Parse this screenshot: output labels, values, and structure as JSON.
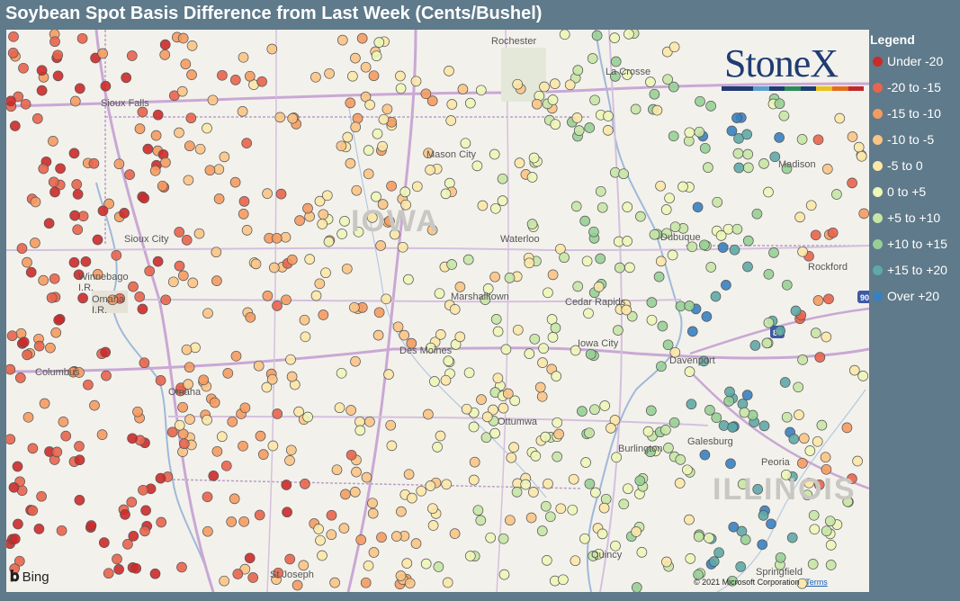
{
  "title": "Soybean Spot Basis Difference from Last Week (Cents/Bushel)",
  "legend": {
    "title": "Legend",
    "items": [
      {
        "label": "Under -20",
        "color": "#cc2a2a"
      },
      {
        "label": "-20 to -15",
        "color": "#e9644d"
      },
      {
        "label": "-15 to -10",
        "color": "#f59b62"
      },
      {
        "label": "-10 to -5",
        "color": "#f9c486"
      },
      {
        "label": "-5 to 0",
        "color": "#fbe7a8"
      },
      {
        "label": "0 to +5",
        "color": "#eef6b8"
      },
      {
        "label": "+5 to +10",
        "color": "#c8e6a6"
      },
      {
        "label": "+10 to +15",
        "color": "#98cf96"
      },
      {
        "label": "+15 to +20",
        "color": "#5fa9a6"
      },
      {
        "label": "Over +20",
        "color": "#3a7fc0"
      }
    ]
  },
  "logo": {
    "text": "StoneX",
    "bar_colors": [
      "#1f3c73",
      "#1f3c73",
      "#5aa0d0",
      "#1f3c73",
      "#2e8b57",
      "#1f3c73",
      "#e8c31c",
      "#e36d1f",
      "#c0282d"
    ]
  },
  "map": {
    "states": [
      "IOWA",
      "ILLINOIS"
    ],
    "cities": [
      "Rochester",
      "La Crosse",
      "Sioux Falls",
      "Mason City",
      "Madison",
      "Sioux City",
      "Waterloo",
      "Dubuque",
      "Rockford",
      "Winnebago I.R.",
      "Omaha I.R.",
      "Marshalltown",
      "Cedar Rapids",
      "Iowa City",
      "Davenport",
      "Columbus",
      "Des Moines",
      "Omaha",
      "Ottumwa",
      "Galesburg",
      "Burlington",
      "Peoria",
      "Quincy",
      "St Joseph",
      "Springfield"
    ],
    "highway_shields": [
      "88",
      "90"
    ]
  },
  "attribution": {
    "bing": "Bing",
    "copyright": "© 2021 Microsoft Corporation",
    "terms": "Terms"
  }
}
